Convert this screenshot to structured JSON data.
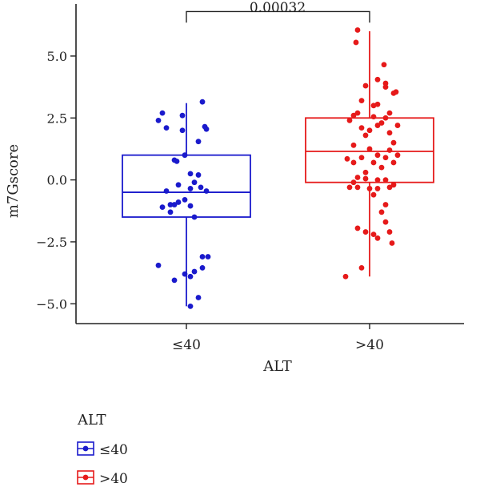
{
  "chart_data": {
    "type": "box",
    "xlabel": "ALT",
    "ylabel": "m7Gscore",
    "ylim": [
      -5.8,
      7.1
    ],
    "yticks": [
      5.0,
      2.5,
      0.0,
      -2.5,
      -5.0
    ],
    "ytick_labels": [
      "5.0",
      "2.5",
      "0.0",
      "−2.5",
      "−5.0"
    ],
    "categories": [
      "≤40",
      ">40"
    ],
    "annotation": "0.00032",
    "legend": {
      "title": "ALT",
      "position": "bottom-left"
    },
    "series": [
      {
        "name": "≤40",
        "color": "#1a1acc",
        "box": {
          "whisker_low": -5.1,
          "q1": -1.5,
          "median": -0.5,
          "q3": 1.0,
          "whisker_high": 3.1
        },
        "points": [
          [
            -0.35,
            2.4
          ],
          [
            -0.3,
            2.7
          ],
          [
            -0.25,
            2.1
          ],
          [
            -0.05,
            2.6
          ],
          [
            -0.05,
            2.0
          ],
          [
            0.2,
            3.15
          ],
          [
            0.25,
            2.05
          ],
          [
            0.23,
            2.15
          ],
          [
            0.15,
            1.55
          ],
          [
            -0.15,
            0.8
          ],
          [
            -0.12,
            0.75
          ],
          [
            -0.02,
            1.0
          ],
          [
            0.05,
            0.25
          ],
          [
            0.15,
            0.2
          ],
          [
            0.1,
            -0.1
          ],
          [
            0.18,
            -0.3
          ],
          [
            0.25,
            -0.45
          ],
          [
            0.05,
            -0.35
          ],
          [
            -0.1,
            -0.2
          ],
          [
            -0.25,
            -0.45
          ],
          [
            -0.02,
            -0.8
          ],
          [
            -0.1,
            -0.9
          ],
          [
            -0.15,
            -1.0
          ],
          [
            -0.2,
            -1.0
          ],
          [
            0.05,
            -1.05
          ],
          [
            -0.3,
            -1.1
          ],
          [
            -0.2,
            -1.3
          ],
          [
            0.1,
            -1.5
          ],
          [
            0.1,
            -3.7
          ],
          [
            0.2,
            -3.1
          ],
          [
            0.27,
            -3.1
          ],
          [
            -0.35,
            -3.45
          ],
          [
            -0.15,
            -4.05
          ],
          [
            -0.02,
            -3.8
          ],
          [
            0.05,
            -3.9
          ],
          [
            0.2,
            -3.55
          ],
          [
            0.15,
            -4.75
          ],
          [
            0.05,
            -5.1
          ]
        ]
      },
      {
        "name": ">40",
        "color": "#e61a1a",
        "box": {
          "whisker_low": -3.9,
          "q1": -0.1,
          "median": 1.15,
          "q3": 2.5,
          "whisker_high": 6.0
        },
        "points": [
          [
            -0.15,
            6.05
          ],
          [
            -0.17,
            5.55
          ],
          [
            0.1,
            4.05
          ],
          [
            0.2,
            3.9
          ],
          [
            -0.05,
            3.8
          ],
          [
            0.2,
            3.75
          ],
          [
            0.33,
            3.55
          ],
          [
            0.3,
            3.5
          ],
          [
            0.18,
            4.65
          ],
          [
            -0.1,
            3.2
          ],
          [
            0.05,
            3.0
          ],
          [
            0.1,
            3.05
          ],
          [
            -0.2,
            2.6
          ],
          [
            -0.15,
            2.7
          ],
          [
            0.25,
            2.7
          ],
          [
            0.05,
            2.55
          ],
          [
            0.2,
            2.5
          ],
          [
            -0.25,
            2.4
          ],
          [
            0.15,
            2.3
          ],
          [
            0.1,
            2.2
          ],
          [
            0.35,
            2.2
          ],
          [
            -0.1,
            2.1
          ],
          [
            0.0,
            2.0
          ],
          [
            -0.05,
            1.8
          ],
          [
            0.25,
            1.9
          ],
          [
            0.3,
            1.5
          ],
          [
            0.25,
            1.2
          ],
          [
            0.35,
            1.0
          ],
          [
            -0.2,
            1.4
          ],
          [
            0.0,
            1.25
          ],
          [
            0.1,
            1.0
          ],
          [
            -0.1,
            0.9
          ],
          [
            0.2,
            0.9
          ],
          [
            -0.28,
            0.85
          ],
          [
            -0.2,
            0.7
          ],
          [
            0.3,
            0.7
          ],
          [
            0.05,
            0.7
          ],
          [
            0.15,
            0.5
          ],
          [
            -0.05,
            0.3
          ],
          [
            -0.05,
            0.05
          ],
          [
            0.1,
            0.0
          ],
          [
            0.2,
            0.0
          ],
          [
            -0.15,
            0.1
          ],
          [
            -0.2,
            -0.1
          ],
          [
            -0.25,
            -0.3
          ],
          [
            -0.15,
            -0.3
          ],
          [
            0.0,
            -0.35
          ],
          [
            0.1,
            -0.35
          ],
          [
            0.25,
            -0.3
          ],
          [
            0.3,
            -0.2
          ],
          [
            0.2,
            -1.0
          ],
          [
            0.15,
            -1.3
          ],
          [
            0.2,
            -1.7
          ],
          [
            -0.05,
            -2.1
          ],
          [
            -0.15,
            -1.95
          ],
          [
            0.05,
            -2.2
          ],
          [
            0.1,
            -2.35
          ],
          [
            0.25,
            -2.1
          ],
          [
            0.28,
            -2.55
          ],
          [
            -0.1,
            -3.55
          ],
          [
            -0.3,
            -3.9
          ],
          [
            0.05,
            -0.6
          ]
        ]
      }
    ]
  }
}
